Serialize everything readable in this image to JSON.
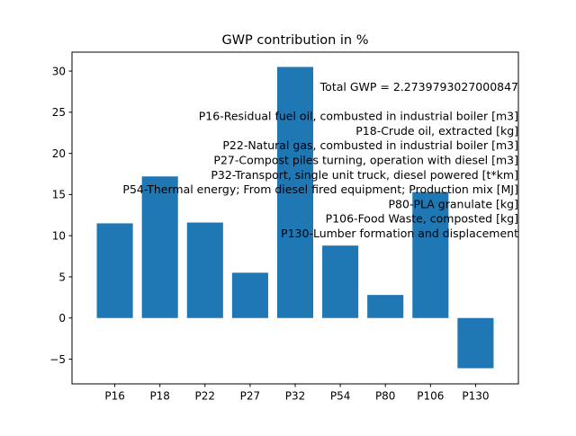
{
  "chart_data": {
    "type": "bar",
    "title": "GWP contribution in %",
    "xlabel": "",
    "ylabel": "",
    "categories": [
      "P16",
      "P18",
      "P22",
      "P27",
      "P32",
      "P54",
      "P80",
      "P106",
      "P130"
    ],
    "values": [
      11.5,
      17.2,
      11.6,
      5.5,
      30.5,
      8.8,
      2.8,
      15.3,
      -6.1
    ],
    "ylim": [
      -8,
      32.3
    ],
    "yticks": [
      -5,
      0,
      5,
      10,
      15,
      20,
      25,
      30
    ],
    "ytick_labels": [
      "−5",
      "0",
      "5",
      "10",
      "15",
      "20",
      "25",
      "30"
    ],
    "bar_color": "#1f77b4",
    "grid": false,
    "legend": null,
    "annotation_lines": [
      "Total GWP = 2.2739793027000847",
      "",
      "P16-Residual fuel oil, combusted in industrial boiler [m3]",
      "P18-Crude oil, extracted [kg]",
      "P22-Natural gas, combusted in industrial boiler [m3]",
      "P27-Compost piles turning, operation with diesel [m3]",
      "P32-Transport, single unit truck, diesel powered [t*km]",
      "P54-Thermal energy; From diesel fired equipment; Production mix [MJ]",
      "P80-PLA granulate [kg]",
      "P106-Food Waste, composted [kg]",
      "P130-Lumber formation and displacement"
    ]
  }
}
